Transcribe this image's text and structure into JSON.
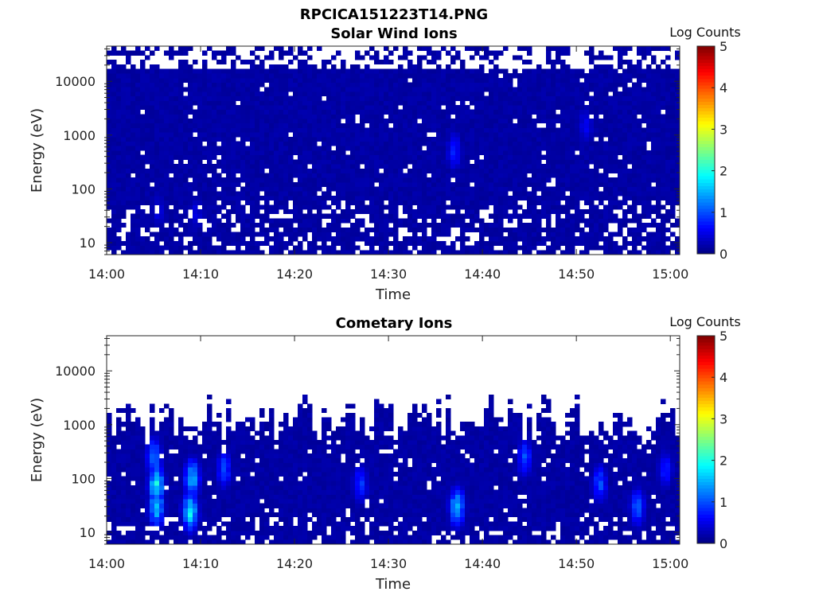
{
  "figure": {
    "title": "RPCICA151223T14.PNG"
  },
  "chart_data": [
    {
      "type": "heatmap",
      "title": "Solar Wind Ions",
      "xlabel": "Time",
      "ylabel": "Energy (eV)",
      "x_ticks": [
        "14:00",
        "14:10",
        "14:20",
        "14:30",
        "14:40",
        "14:50",
        "15:00"
      ],
      "x_range_minutes": [
        0,
        61
      ],
      "y_scale": "log",
      "y_ticks": [
        10,
        100,
        1000,
        10000
      ],
      "y_tick_labels": [
        "10",
        "100",
        "1000",
        "10000"
      ],
      "y_range": [
        6,
        45000
      ],
      "colorbar": {
        "label": "Log Counts",
        "range": [
          0,
          5
        ],
        "ticks": [
          "0",
          "1",
          "2",
          "3",
          "4",
          "5"
        ],
        "colormap": "jet"
      },
      "grid": false,
      "data_description": "Mostly uniform low counts (~0.1-0.3 log counts) across 6 eV - 30 keV and the full hour, with sparse empty bins above ~20 keV and below ~60 eV; isolated slightly higher bins (~0.6-0.8) near 14:37 at ~500 eV and near 14:51 at ~1500 eV.",
      "hot_spots": [
        {
          "t": 37.0,
          "e": 500,
          "v": 0.8
        },
        {
          "t": 51.0,
          "e": 1500,
          "v": 0.6
        },
        {
          "t": 5.5,
          "e": 40,
          "v": 0.5
        },
        {
          "t": 9.5,
          "e": 35,
          "v": 0.5
        }
      ]
    },
    {
      "type": "heatmap",
      "title": "Cometary Ions",
      "xlabel": "Time",
      "ylabel": "Energy (eV)",
      "x_ticks": [
        "14:00",
        "14:10",
        "14:20",
        "14:30",
        "14:40",
        "14:50",
        "15:00"
      ],
      "x_range_minutes": [
        0,
        61
      ],
      "y_scale": "log",
      "y_ticks": [
        10,
        100,
        1000,
        10000
      ],
      "y_tick_labels": [
        "10",
        "100",
        "1000",
        "10000"
      ],
      "y_range": [
        6,
        45000
      ],
      "colorbar": {
        "label": "Log Counts",
        "range": [
          0,
          5
        ],
        "ticks": [
          "0",
          "1",
          "2",
          "3",
          "4",
          "5"
        ],
        "colormap": "jet"
      },
      "grid": false,
      "data_description": "Counts concentrated below ~2-3 keV with ragged upper edge; brightest columns near 14:05 and 14:09 (up to ~1.8-2 log counts at 20-300 eV), secondary enhancements near 14:12, 14:27, 14:37, 14:45, 14:52, 14:57.",
      "hot_spots": [
        {
          "t": 5.3,
          "e": 80,
          "v": 1.9
        },
        {
          "t": 5.3,
          "e": 30,
          "v": 1.7
        },
        {
          "t": 5.0,
          "e": 250,
          "v": 1.3
        },
        {
          "t": 8.9,
          "e": 25,
          "v": 1.9
        },
        {
          "t": 9.1,
          "e": 100,
          "v": 1.6
        },
        {
          "t": 12.5,
          "e": 150,
          "v": 1.0
        },
        {
          "t": 27.0,
          "e": 80,
          "v": 0.9
        },
        {
          "t": 37.3,
          "e": 30,
          "v": 1.6
        },
        {
          "t": 44.5,
          "e": 250,
          "v": 1.0
        },
        {
          "t": 52.5,
          "e": 80,
          "v": 1.0
        },
        {
          "t": 56.5,
          "e": 30,
          "v": 1.1
        },
        {
          "t": 59.5,
          "e": 150,
          "v": 0.8
        }
      ]
    }
  ]
}
